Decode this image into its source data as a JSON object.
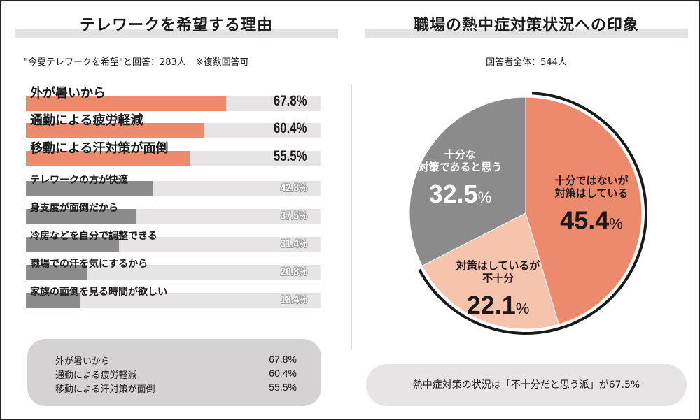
{
  "left_panel": {
    "title": "テレワークを希望する理由",
    "subtitle": "\"今夏テレワークを希望\"と回答：283人",
    "note": "※複数回答可"
  },
  "right_panel": {
    "title": "職場の熱中症対策状況への印象",
    "subtitle": "回答者全体：544人"
  },
  "summary": [
    {
      "label": "外が暑いから",
      "value": "67.8%"
    },
    {
      "label": "通勤による疲労軽減",
      "value": "60.4%"
    },
    {
      "label": "移動による汗対策が面倒",
      "value": "55.5%"
    }
  ],
  "bottom_note": "熱中症対策の状況は「不十分だと思う派」が67.5%",
  "chart_data": [
    {
      "type": "bar",
      "orientation": "horizontal",
      "title": "テレワークを希望する理由",
      "unit": "%",
      "xlim": [
        0,
        100
      ],
      "categories": [
        "外が暑いから",
        "通勤による疲労軽減",
        "移動による汗対策が面倒",
        "テレワークの方が快適",
        "身支度が面倒だから",
        "冷房などを自分で調整できる",
        "職場での汗を気にするから",
        "家族の面倒を見る時間が欲しい"
      ],
      "values": [
        67.8,
        60.4,
        55.5,
        42.8,
        37.5,
        31.4,
        20.8,
        18.4
      ],
      "value_labels": [
        "67.8%",
        "60.4%",
        "55.5%",
        "42.8%",
        "37.5%",
        "31.4%",
        "20.8%",
        "18.4%"
      ],
      "highlight_count": 3,
      "colors": {
        "highlight": "#ee8a6c",
        "normal": "#8b8b8b",
        "track": "#e6e4e4"
      }
    },
    {
      "type": "pie",
      "title": "職場の熱中症対策状況への印象",
      "start_angle_deg": 0,
      "direction": "clockwise",
      "slices": [
        {
          "label_lines": [
            "十分ではないが",
            "対策はしている"
          ],
          "value": 45.4,
          "value_label": "45.4%",
          "color": "#ee8a6c",
          "text_color": "#1a1a1a"
        },
        {
          "label_lines": [
            "対策はしているが",
            "不十分"
          ],
          "value": 22.1,
          "value_label": "22.1%",
          "color": "#f6c3ac",
          "text_color": "#1a1a1a"
        },
        {
          "label_lines": [
            "十分な",
            "対策であると思う"
          ],
          "value": 32.5,
          "value_label": "32.5%",
          "color": "#8b8b8b",
          "text_color": "#ffffff"
        }
      ]
    }
  ]
}
